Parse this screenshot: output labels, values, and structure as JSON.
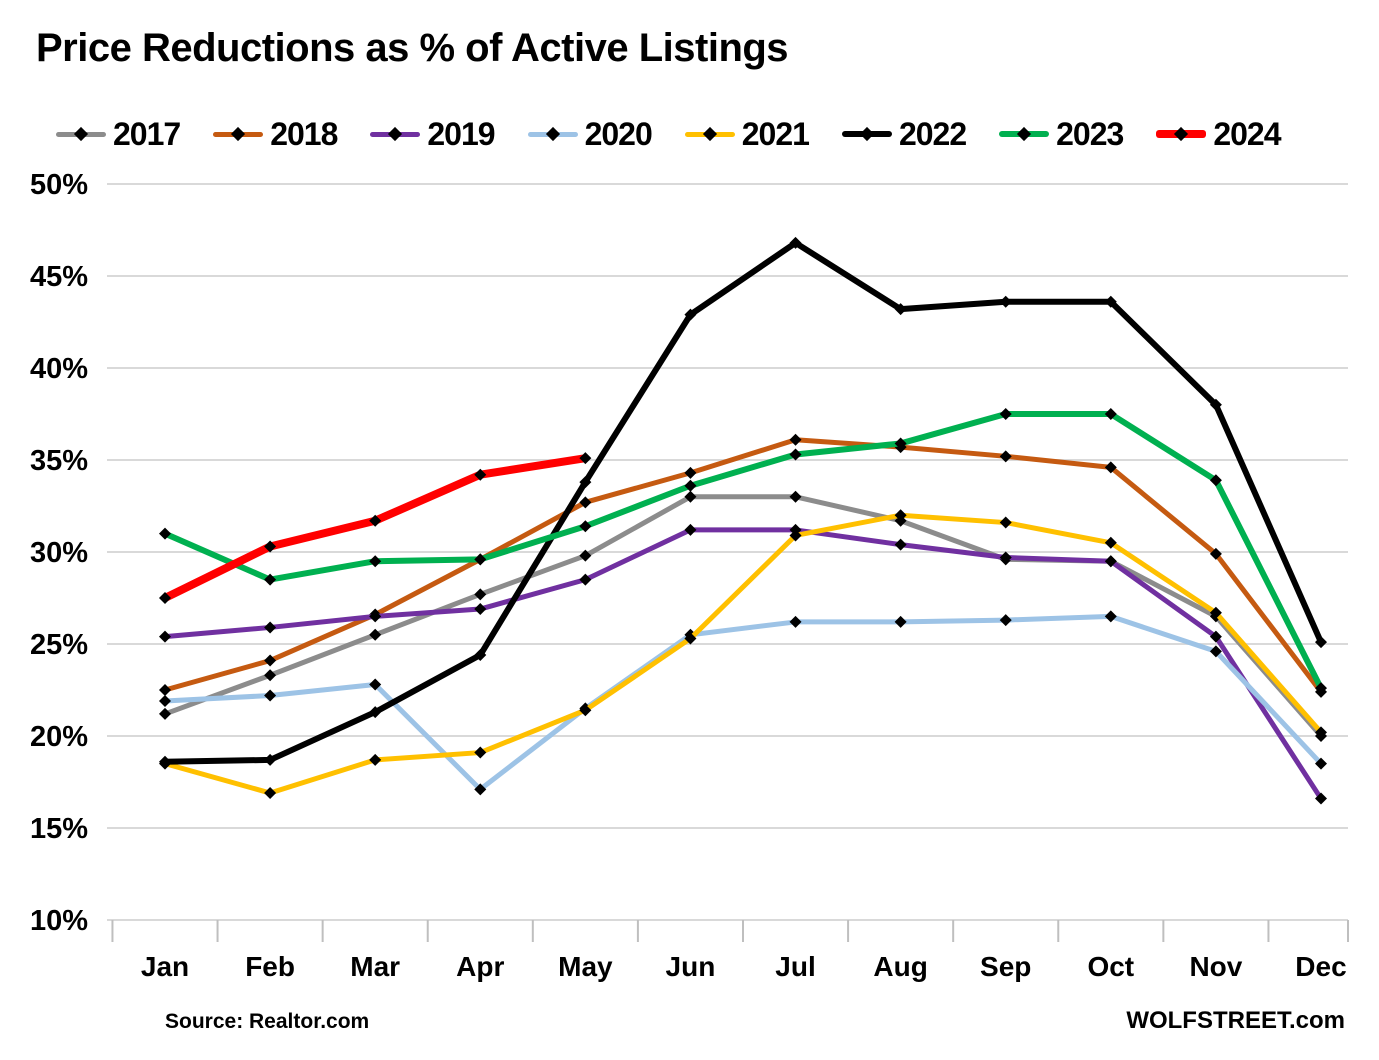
{
  "title": "Price Reductions as % of Active Listings",
  "footer": {
    "source": "Source: Realtor.com",
    "branding": "WOLFSTREET.com"
  },
  "colors": {
    "grid": "#D9D9D9",
    "tick": "#BFBFBF",
    "text": "#000000",
    "marker": "#000000"
  },
  "chart_data": {
    "type": "line",
    "title": "Price Reductions as % of Active Listings",
    "xlabel": "",
    "ylabel": "",
    "ylim": [
      10,
      50
    ],
    "ytick_step": 5,
    "grid": true,
    "legend_position": "top",
    "marker_shape": "diamond",
    "categories": [
      "Jan",
      "Feb",
      "Mar",
      "Apr",
      "May",
      "Jun",
      "Jul",
      "Aug",
      "Sep",
      "Oct",
      "Nov",
      "Dec"
    ],
    "y_tick_labels": [
      "10%",
      "15%",
      "20%",
      "25%",
      "30%",
      "35%",
      "40%",
      "45%",
      "50%"
    ],
    "series": [
      {
        "name": "2017",
        "color": "#8C8C8C",
        "width": 5,
        "values": [
          21.2,
          23.3,
          25.5,
          27.7,
          29.8,
          33.0,
          33.0,
          31.7,
          29.6,
          29.5,
          26.5,
          20.0
        ]
      },
      {
        "name": "2018",
        "color": "#C55A11",
        "width": 5,
        "values": [
          22.5,
          24.1,
          26.6,
          29.6,
          32.7,
          34.3,
          36.1,
          35.7,
          35.2,
          34.6,
          29.9,
          22.4
        ]
      },
      {
        "name": "2019",
        "color": "#7030A0",
        "width": 5,
        "values": [
          25.4,
          25.9,
          26.5,
          26.9,
          28.5,
          31.2,
          31.2,
          30.4,
          29.7,
          29.5,
          25.4,
          16.6
        ]
      },
      {
        "name": "2020",
        "color": "#9DC3E6",
        "width": 5,
        "values": [
          21.9,
          22.2,
          22.8,
          17.1,
          21.5,
          25.5,
          26.2,
          26.2,
          26.3,
          26.5,
          24.6,
          18.5
        ]
      },
      {
        "name": "2021",
        "color": "#FFC000",
        "width": 5,
        "values": [
          18.5,
          16.9,
          18.7,
          19.1,
          21.4,
          25.3,
          30.9,
          32.0,
          31.6,
          30.5,
          26.7,
          20.2
        ]
      },
      {
        "name": "2022",
        "color": "#000000",
        "width": 6,
        "values": [
          18.6,
          18.7,
          21.3,
          24.4,
          33.8,
          42.9,
          46.8,
          43.2,
          43.6,
          43.6,
          38.0,
          25.1
        ]
      },
      {
        "name": "2023",
        "color": "#00B050",
        "width": 6,
        "values": [
          31.0,
          28.5,
          29.5,
          29.6,
          31.4,
          33.6,
          35.3,
          35.9,
          37.5,
          37.5,
          33.9,
          22.6
        ]
      },
      {
        "name": "2024",
        "color": "#FF0000",
        "width": 8,
        "values": [
          27.5,
          30.3,
          31.7,
          34.2,
          35.1,
          null,
          null,
          null,
          null,
          null,
          null,
          null
        ]
      }
    ]
  }
}
